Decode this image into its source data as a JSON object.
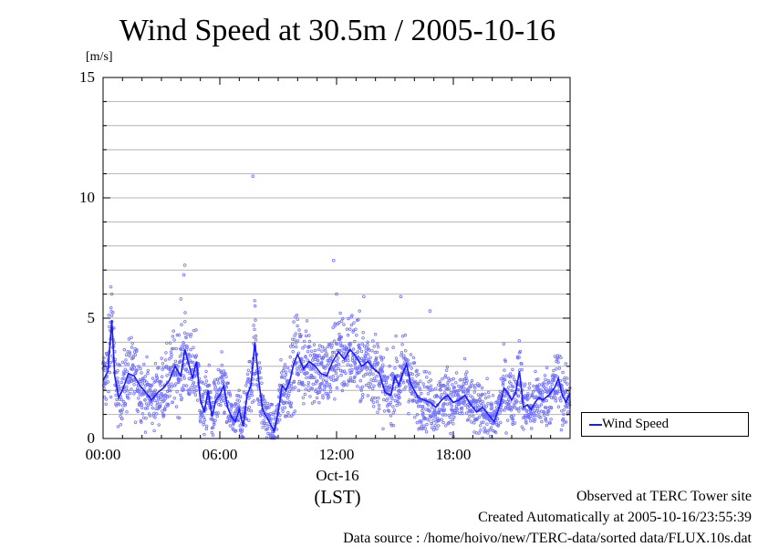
{
  "chart_data": {
    "type": "line",
    "title": "Wind Speed at 30.5m / 2005-10-16",
    "ylabel": "[m/s]",
    "xlabel": "(LST)",
    "x_date_label": "Oct-16",
    "ylim": [
      0,
      15
    ],
    "xlim_hours": [
      0,
      24
    ],
    "y_ticks": [
      "0",
      "5",
      "10",
      "15"
    ],
    "x_ticks": [
      {
        "label": "00:00",
        "hour": 0
      },
      {
        "label": "06:00",
        "hour": 6
      },
      {
        "label": "12:00",
        "hour": 12
      },
      {
        "label": "18:00",
        "hour": 18
      }
    ],
    "grid": true,
    "legend_position": "bottom-right-outside",
    "series": [
      {
        "name": "Wind Speed",
        "color": "#1a1aff",
        "points": [
          [
            0.0,
            2.4
          ],
          [
            0.25,
            2.8
          ],
          [
            0.45,
            4.9
          ],
          [
            0.6,
            2.6
          ],
          [
            0.8,
            1.7
          ],
          [
            1.0,
            2.0
          ],
          [
            1.3,
            2.7
          ],
          [
            1.6,
            2.6
          ],
          [
            1.9,
            2.2
          ],
          [
            2.2,
            1.9
          ],
          [
            2.5,
            1.6
          ],
          [
            2.8,
            1.9
          ],
          [
            3.1,
            2.1
          ],
          [
            3.4,
            2.4
          ],
          [
            3.7,
            3.0
          ],
          [
            4.0,
            2.6
          ],
          [
            4.2,
            3.7
          ],
          [
            4.4,
            3.1
          ],
          [
            4.6,
            2.5
          ],
          [
            4.8,
            3.2
          ],
          [
            5.0,
            1.6
          ],
          [
            5.2,
            1.1
          ],
          [
            5.4,
            2.0
          ],
          [
            5.6,
            0.9
          ],
          [
            5.8,
            1.6
          ],
          [
            6.0,
            1.8
          ],
          [
            6.2,
            2.2
          ],
          [
            6.4,
            1.3
          ],
          [
            6.6,
            0.9
          ],
          [
            6.8,
            0.7
          ],
          [
            7.0,
            1.2
          ],
          [
            7.2,
            0.5
          ],
          [
            7.4,
            1.8
          ],
          [
            7.6,
            2.2
          ],
          [
            7.8,
            4.0
          ],
          [
            8.0,
            2.4
          ],
          [
            8.2,
            1.2
          ],
          [
            8.4,
            0.9
          ],
          [
            8.6,
            0.6
          ],
          [
            8.8,
            0.3
          ],
          [
            9.0,
            1.1
          ],
          [
            9.2,
            2.2
          ],
          [
            9.4,
            2.0
          ],
          [
            9.6,
            2.4
          ],
          [
            9.8,
            3.1
          ],
          [
            10.0,
            3.5
          ],
          [
            10.3,
            2.9
          ],
          [
            10.6,
            3.2
          ],
          [
            10.9,
            3.0
          ],
          [
            11.2,
            2.7
          ],
          [
            11.5,
            2.6
          ],
          [
            11.8,
            3.2
          ],
          [
            12.1,
            3.6
          ],
          [
            12.4,
            3.3
          ],
          [
            12.7,
            3.7
          ],
          [
            13.0,
            3.4
          ],
          [
            13.3,
            3.0
          ],
          [
            13.6,
            3.2
          ],
          [
            13.9,
            2.9
          ],
          [
            14.2,
            2.7
          ],
          [
            14.5,
            1.9
          ],
          [
            14.8,
            1.8
          ],
          [
            15.0,
            2.6
          ],
          [
            15.2,
            2.2
          ],
          [
            15.4,
            2.7
          ],
          [
            15.6,
            3.1
          ],
          [
            15.8,
            2.3
          ],
          [
            16.0,
            2.0
          ],
          [
            16.2,
            1.7
          ],
          [
            16.5,
            1.6
          ],
          [
            16.8,
            1.5
          ],
          [
            17.1,
            1.3
          ],
          [
            17.4,
            1.6
          ],
          [
            17.7,
            1.8
          ],
          [
            18.0,
            1.5
          ],
          [
            18.3,
            1.6
          ],
          [
            18.6,
            1.8
          ],
          [
            18.9,
            1.4
          ],
          [
            19.2,
            1.1
          ],
          [
            19.5,
            1.3
          ],
          [
            19.8,
            1.0
          ],
          [
            20.1,
            0.7
          ],
          [
            20.4,
            1.4
          ],
          [
            20.6,
            2.1
          ],
          [
            20.8,
            1.9
          ],
          [
            21.0,
            1.6
          ],
          [
            21.2,
            1.9
          ],
          [
            21.4,
            2.8
          ],
          [
            21.6,
            1.3
          ],
          [
            21.8,
            1.4
          ],
          [
            22.0,
            1.2
          ],
          [
            22.2,
            1.5
          ],
          [
            22.4,
            1.7
          ],
          [
            22.6,
            1.6
          ],
          [
            22.9,
            1.8
          ],
          [
            23.2,
            2.1
          ],
          [
            23.4,
            2.5
          ],
          [
            23.6,
            1.8
          ],
          [
            23.8,
            1.5
          ],
          [
            24.0,
            1.9
          ]
        ]
      }
    ],
    "outliers": [
      [
        0.4,
        6.3
      ],
      [
        0.45,
        6.0
      ],
      [
        4.15,
        6.8
      ],
      [
        4.2,
        7.2
      ],
      [
        7.7,
        10.9
      ],
      [
        11.85,
        7.4
      ],
      [
        12.0,
        6.0
      ],
      [
        13.4,
        5.9
      ],
      [
        15.3,
        5.9
      ],
      [
        16.8,
        5.3
      ],
      [
        4.0,
        5.8
      ],
      [
        3.9,
        4.3
      ]
    ]
  },
  "legend": {
    "label": "Wind Speed"
  },
  "footer": {
    "site": "Observed at TERC Tower site",
    "created": "Created Automatically at 2005-10-16/23:55:39",
    "source": "Data source : /home/hoivo/new/TERC-data/sorted  data/FLUX.10s.dat"
  }
}
